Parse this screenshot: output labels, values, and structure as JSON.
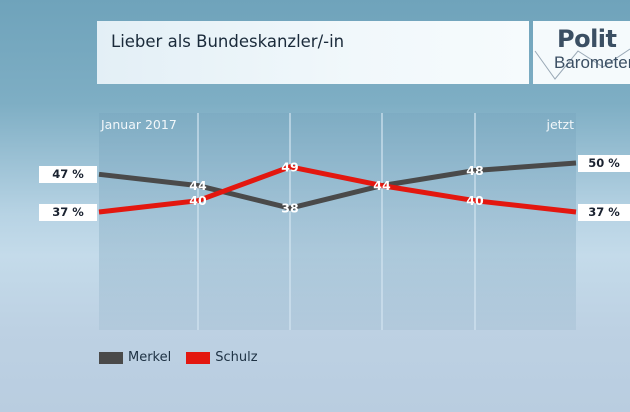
{
  "header": {
    "title": "Lieber als Bundeskanzler/-in",
    "logo": {
      "line1": "Polit",
      "line2": "Barometer"
    }
  },
  "colors": {
    "merkel": "#4a4a4a",
    "schulz": "#e3170f",
    "badge_bg": "#ffffff"
  },
  "chart_data": {
    "type": "line",
    "title": "Lieber als Bundeskanzler/-in",
    "xlabel": "",
    "ylabel": "",
    "x": [
      "Januar 2017",
      "",
      "",
      "",
      "",
      "jetzt"
    ],
    "x_labels_shown": {
      "start": "Januar 2017",
      "end": "jetzt"
    },
    "ylim": [
      30,
      55
    ],
    "grid": "vertical",
    "series": [
      {
        "name": "Merkel",
        "color": "#4a4a4a",
        "values": [
          47,
          44,
          38,
          44,
          48,
          50
        ],
        "data_labels": [
          "",
          "44",
          "38",
          "44",
          "48",
          ""
        ],
        "start_badge": "47 %",
        "end_badge": "50 %"
      },
      {
        "name": "Schulz",
        "color": "#e3170f",
        "values": [
          37,
          40,
          49,
          44,
          40,
          37
        ],
        "data_labels": [
          "",
          "40",
          "49",
          "",
          "40",
          ""
        ],
        "start_badge": "37 %",
        "end_badge": "37 %"
      }
    ],
    "legend": {
      "placement": "bottom-left",
      "entries": [
        "Merkel",
        "Schulz"
      ]
    }
  }
}
